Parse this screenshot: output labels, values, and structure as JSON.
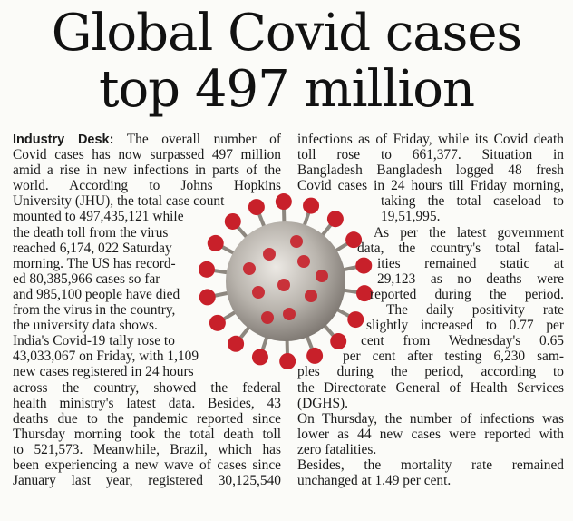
{
  "headline": {
    "line1": "Global Covid cases",
    "line2": "top 497 million"
  },
  "dept": "Industry Desk:",
  "left": [
    [
      "The overall number of",
      "j"
    ],
    [
      "Covid cases has now surpassed 497 million",
      "j"
    ],
    [
      "amid a rise in new infections in parts of the",
      "j"
    ],
    [
      "world.  According  to  Johns  Hopkins",
      "j"
    ],
    [
      "University (JHU), the total case count",
      ""
    ],
    [
      "mounted to 497,435,121 while",
      ""
    ],
    [
      "the death toll from the virus",
      ""
    ],
    [
      "reached 6,174, 022 Saturday",
      ""
    ],
    [
      "morning. The US has record-",
      ""
    ],
    [
      "ed 80,385,966 cases so far",
      ""
    ],
    [
      "and 985,100 people have died",
      ""
    ],
    [
      "from the virus in the country,",
      ""
    ],
    [
      "the university data shows.",
      ""
    ],
    [
      "India's Covid-19 tally rose to",
      ""
    ],
    [
      "43,033,067 on Friday, with 1,109",
      ""
    ],
    [
      "new cases registered in 24 hours",
      ""
    ],
    [
      "across the country, showed the federal",
      "j"
    ],
    [
      "health ministry's latest data. Besides, 43",
      "j"
    ],
    [
      "deaths due to the pandemic reported since",
      "j"
    ],
    [
      "Thursday morning took the total death toll",
      "j"
    ],
    [
      "to 521,573. Meanwhile, Brazil, which has",
      "j"
    ],
    [
      "been experiencing a new wave of cases since",
      "j"
    ],
    [
      "January last year, registered 30,125,540",
      "j"
    ]
  ],
  "right": [
    [
      "infections as of Friday, while its Covid death",
      "j",
      0
    ],
    [
      "toll  rose  to  661,377.  Situation  in",
      "j",
      0
    ],
    [
      "Bangladesh Bangladesh logged 48 fresh",
      "j",
      0
    ],
    [
      "Covid cases in 24 hours till Friday morning,",
      "j",
      0
    ],
    [
      "taking the total caseload to",
      "j",
      92
    ],
    [
      "19,51,995.",
      "",
      92
    ],
    [
      "As per the latest government",
      "j",
      84
    ],
    [
      "data, the country's total fatal-",
      "j",
      66
    ],
    [
      "ities  remained  static  at",
      "j",
      88
    ],
    [
      "29,123 as no deaths were",
      "j",
      88
    ],
    [
      "reported during the period.",
      "j",
      80
    ],
    [
      "The daily positivity rate",
      "j",
      98
    ],
    [
      "slightly increased to 0.77 per",
      "j",
      76
    ],
    [
      "cent from Wednesday's 0.65",
      "j",
      70
    ],
    [
      "per cent after testing 6,230 sam-",
      "j",
      50
    ],
    [
      "ples during the period, according to",
      "j",
      0
    ],
    [
      "the Directorate General of Health Services",
      "j",
      0
    ],
    [
      "(DGHS).",
      "",
      0
    ],
    [
      "On Thursday, the number of infections was",
      "j",
      0
    ],
    [
      "lower as 44 new cases were reported with",
      "j",
      0
    ],
    [
      "zero fatalities.",
      "",
      0
    ],
    [
      "Besides,  the  mortality  rate  remained",
      "j",
      0
    ],
    [
      "unchanged at 1.49 per cent.",
      "",
      0
    ]
  ],
  "colors": {
    "virus_body": "#b9b4ad",
    "spike": "#c8202a"
  }
}
